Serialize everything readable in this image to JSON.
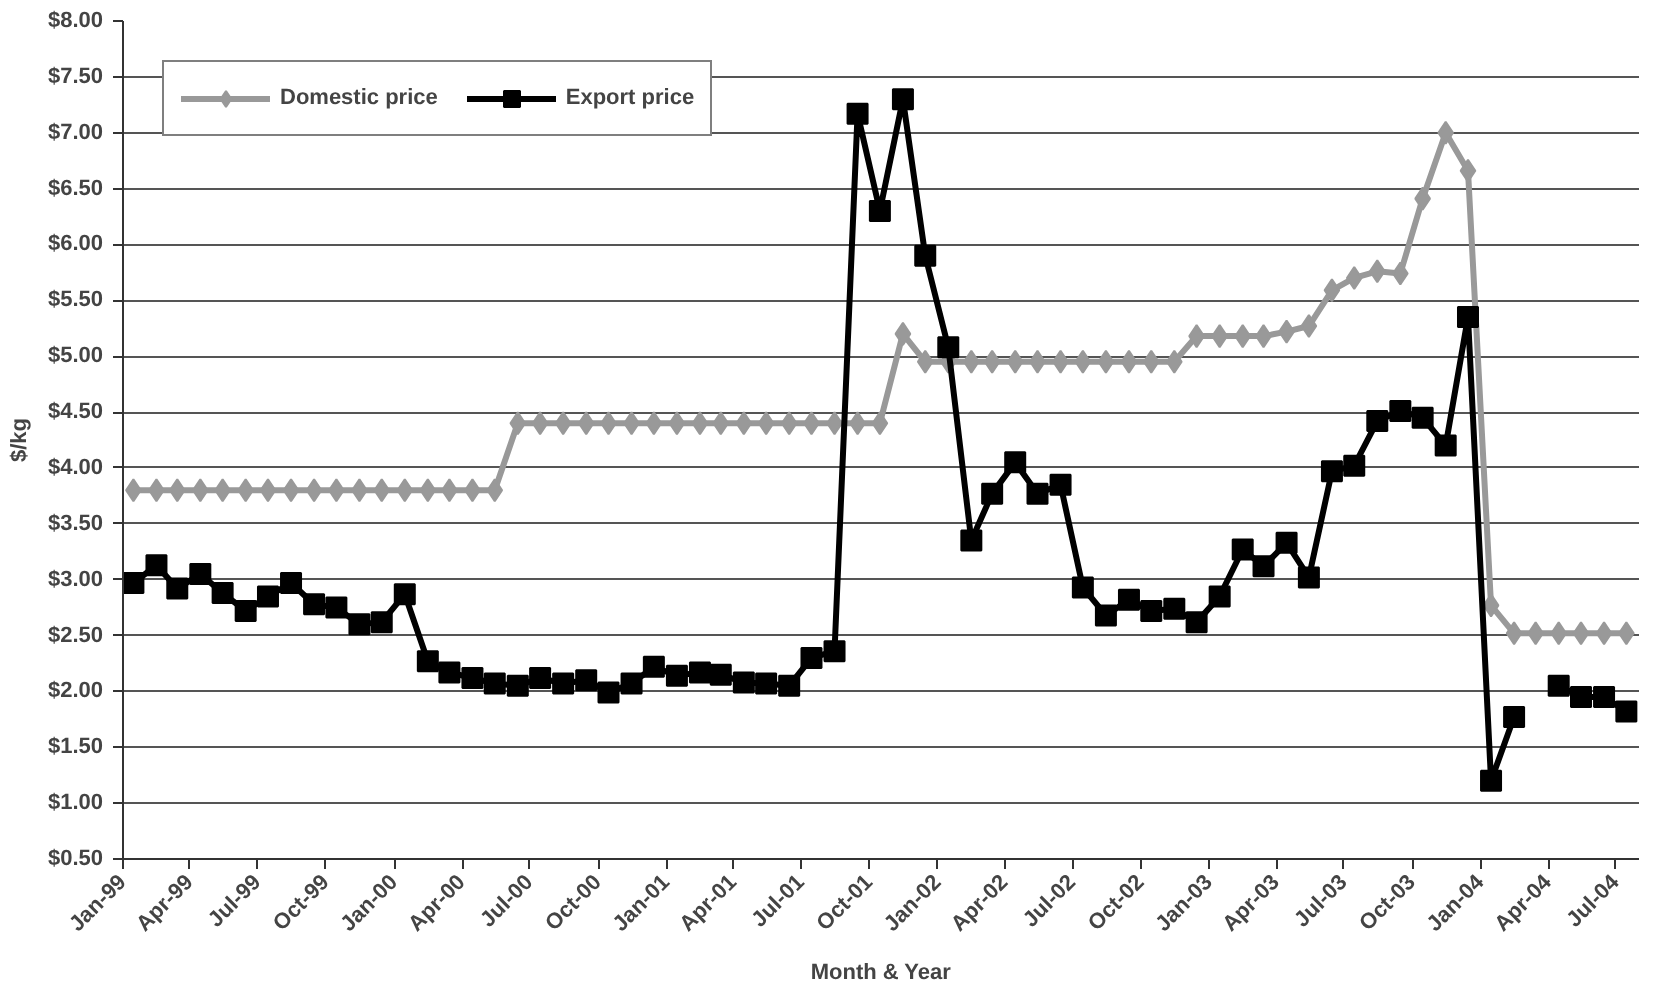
{
  "chart_data": {
    "type": "line",
    "xlabel": "Month & Year",
    "ylabel": "$/kg",
    "x": [
      "1999-01-15",
      "1999-02-15",
      "1999-03-15",
      "1999-04-15",
      "1999-05-15",
      "1999-06-15",
      "1999-07-15",
      "1999-08-15",
      "1999-09-15",
      "1999-10-15",
      "1999-11-15",
      "1999-12-15",
      "2000-01-15",
      "2000-02-15",
      "2000-03-15",
      "2000-04-15",
      "2000-05-15",
      "2000-06-15",
      "2000-07-15",
      "2000-08-15",
      "2000-09-15",
      "2000-10-15",
      "2000-11-15",
      "2000-12-15",
      "2001-01-15",
      "2001-02-15",
      "2001-03-15",
      "2001-04-15",
      "2001-05-15",
      "2001-06-15",
      "2001-07-15",
      "2001-08-15",
      "2001-09-15",
      "2001-10-15",
      "2001-11-15",
      "2001-12-15",
      "2002-01-15",
      "2002-02-15",
      "2002-03-15",
      "2002-04-15",
      "2002-05-15",
      "2002-06-15",
      "2002-07-15",
      "2002-08-15",
      "2002-09-15",
      "2002-10-15",
      "2002-11-15",
      "2002-12-15",
      "2003-01-15",
      "2003-02-15",
      "2003-03-15",
      "2003-04-15",
      "2003-05-15",
      "2003-06-15",
      "2003-07-15",
      "2003-08-15",
      "2003-09-15",
      "2003-10-15",
      "2003-11-15",
      "2003-12-15",
      "2004-01-15",
      "2004-02-15",
      "2004-03-15",
      "2004-04-15",
      "2004-05-15",
      "2004-06-15",
      "2004-07-15"
    ],
    "series": [
      {
        "name": "Domestic price",
        "color": "#999999",
        "marker": "diamond",
        "values": [
          3.8,
          3.8,
          3.8,
          3.8,
          3.8,
          3.8,
          3.8,
          3.8,
          3.8,
          3.8,
          3.8,
          3.8,
          3.8,
          3.8,
          3.8,
          3.8,
          3.8,
          4.4,
          4.4,
          4.4,
          4.4,
          4.4,
          4.4,
          4.4,
          4.4,
          4.4,
          4.4,
          4.4,
          4.4,
          4.4,
          4.4,
          4.4,
          4.4,
          4.4,
          5.2,
          4.95,
          4.95,
          4.95,
          4.95,
          4.95,
          4.95,
          4.95,
          4.95,
          4.95,
          4.95,
          4.95,
          4.95,
          5.18,
          5.18,
          5.18,
          5.18,
          5.22,
          5.27,
          5.59,
          5.7,
          5.76,
          5.74,
          6.41,
          7.0,
          6.66,
          2.77,
          2.52,
          2.52,
          2.52,
          2.52,
          2.52,
          2.52
        ]
      },
      {
        "name": "Export price",
        "color": "#000000",
        "marker": "square",
        "values": [
          2.97,
          3.13,
          2.92,
          3.05,
          2.88,
          2.72,
          2.85,
          2.97,
          2.78,
          2.75,
          2.6,
          2.62,
          2.87,
          2.27,
          2.17,
          2.12,
          2.07,
          2.05,
          2.12,
          2.07,
          2.1,
          1.99,
          2.07,
          2.22,
          2.14,
          2.17,
          2.15,
          2.08,
          2.07,
          2.05,
          2.3,
          2.36,
          7.17,
          6.3,
          7.3,
          5.9,
          5.08,
          3.35,
          3.77,
          4.05,
          3.77,
          3.85,
          2.93,
          2.68,
          2.82,
          2.72,
          2.74,
          2.62,
          2.85,
          3.27,
          3.12,
          3.33,
          3.02,
          3.97,
          4.02,
          4.42,
          4.51,
          4.45,
          4.2,
          5.35,
          1.2,
          1.77,
          null,
          2.05,
          1.95,
          1.95,
          1.82
        ]
      }
    ],
    "xlim": [
      "1999-01-01",
      "2004-08-01"
    ],
    "xticks": [
      {
        "value": "1999-01-01",
        "label": "Jan-99"
      },
      {
        "value": "1999-04-01",
        "label": "Apr-99"
      },
      {
        "value": "1999-07-01",
        "label": "Jul-99"
      },
      {
        "value": "1999-10-01",
        "label": "Oct-99"
      },
      {
        "value": "2000-01-01",
        "label": "Jan-00"
      },
      {
        "value": "2000-04-01",
        "label": "Apr-00"
      },
      {
        "value": "2000-07-01",
        "label": "Jul-00"
      },
      {
        "value": "2000-10-01",
        "label": "Oct-00"
      },
      {
        "value": "2001-01-01",
        "label": "Jan-01"
      },
      {
        "value": "2001-04-01",
        "label": "Apr-01"
      },
      {
        "value": "2001-07-01",
        "label": "Jul-01"
      },
      {
        "value": "2001-10-01",
        "label": "Oct-01"
      },
      {
        "value": "2002-01-01",
        "label": "Jan-02"
      },
      {
        "value": "2002-04-01",
        "label": "Apr-02"
      },
      {
        "value": "2002-07-01",
        "label": "Jul-02"
      },
      {
        "value": "2002-10-01",
        "label": "Oct-02"
      },
      {
        "value": "2003-01-01",
        "label": "Jan-03"
      },
      {
        "value": "2003-04-01",
        "label": "Apr-03"
      },
      {
        "value": "2003-07-01",
        "label": "Jul-03"
      },
      {
        "value": "2003-10-01",
        "label": "Oct-03"
      },
      {
        "value": "2004-01-01",
        "label": "Jan-04"
      },
      {
        "value": "2004-04-01",
        "label": "Apr-04"
      },
      {
        "value": "2004-07-01",
        "label": "Jul-04"
      }
    ],
    "ylim": [
      0.5,
      8.0
    ],
    "yticks": [
      {
        "value": 0.5,
        "label": "$0.50"
      },
      {
        "value": 1.0,
        "label": "$1.00"
      },
      {
        "value": 1.5,
        "label": "$1.50"
      },
      {
        "value": 2.0,
        "label": "$2.00"
      },
      {
        "value": 2.5,
        "label": "$2.50"
      },
      {
        "value": 3.0,
        "label": "$3.00"
      },
      {
        "value": 3.5,
        "label": "$3.50"
      },
      {
        "value": 4.0,
        "label": "$4.00"
      },
      {
        "value": 4.5,
        "label": "$4.50"
      },
      {
        "value": 5.0,
        "label": "$5.00"
      },
      {
        "value": 5.5,
        "label": "$5.50"
      },
      {
        "value": 6.0,
        "label": "$6.00"
      },
      {
        "value": 6.5,
        "label": "$6.50"
      },
      {
        "value": 7.0,
        "label": "$7.00"
      },
      {
        "value": 7.5,
        "label": "$7.50"
      },
      {
        "value": 8.0,
        "label": "$8.00"
      }
    ],
    "grid": "y",
    "legend": "top left",
    "line_style": "solid"
  }
}
